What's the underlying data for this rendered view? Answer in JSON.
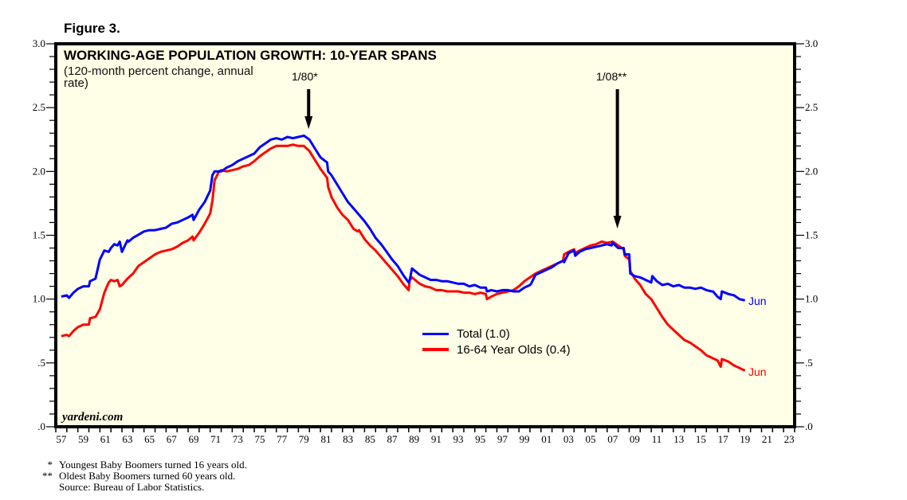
{
  "figure_label": "Figure 3.",
  "watermark": "yardeni.com",
  "colors": {
    "plot_bg": "#fffee6",
    "total": "#0000ff",
    "youth": "#ff0000",
    "axis": "#000000"
  },
  "annotations": [
    {
      "label": "1/80*",
      "x": 1980.0
    },
    {
      "label": "1/08**",
      "x": 2008.0
    }
  ],
  "end_labels": [
    {
      "series": "Total (1.0)",
      "label": "Jun"
    },
    {
      "series": "16-64 Year Olds (0.4)",
      "label": "Jun"
    }
  ],
  "footnotes": [
    {
      "mark": "*",
      "text": "Youngest Baby Boomers turned 16 years old."
    },
    {
      "mark": "**",
      "text": "Oldest Baby Boomers turned 60 years old."
    },
    {
      "mark": "",
      "text": "Source: Bureau of Labor Statistics."
    }
  ],
  "chart_data": {
    "type": "line",
    "title": "WORKING-AGE POPULATION GROWTH: 10-YEAR SPANS",
    "subtitle": "(120-month percent change, annual rate)",
    "xlabel": "",
    "ylabel": "",
    "xlim": [
      1957,
      2024
    ],
    "ylim": [
      0,
      3.0
    ],
    "x_tick_labels": [
      "57",
      "59",
      "61",
      "63",
      "65",
      "67",
      "69",
      "71",
      "73",
      "75",
      "77",
      "79",
      "81",
      "83",
      "85",
      "87",
      "89",
      "91",
      "93",
      "95",
      "97",
      "99",
      "01",
      "03",
      "05",
      "07",
      "09",
      "11",
      "13",
      "15",
      "17",
      "19",
      "21",
      "23"
    ],
    "y_tick_labels_left": [
      "3.0",
      "2.5",
      "2.0",
      "1.5",
      "1.0",
      ".5",
      ".0"
    ],
    "y_tick_labels_right": [
      "3.0",
      "2.5",
      "2.0",
      "1.5",
      "1.0",
      ".5",
      ".0"
    ],
    "y_ticks": [
      3.0,
      2.5,
      2.0,
      1.5,
      1.0,
      0.5,
      0.0
    ],
    "grid": false,
    "legend": "center",
    "series": [
      {
        "name": "Total (1.0)",
        "x": [
          1957.5,
          1958.0,
          1958.2,
          1958.6,
          1959.0,
          1959.5,
          1960.0,
          1960.1,
          1960.6,
          1961.0,
          1961.4,
          1961.8,
          1962.0,
          1962.3,
          1962.6,
          1962.8,
          1963.0,
          1963.5,
          1963.6,
          1964.0,
          1964.6,
          1965.0,
          1965.5,
          1966.0,
          1966.5,
          1967.0,
          1967.5,
          1968.0,
          1968.5,
          1969.0,
          1969.4,
          1969.5,
          1970.0,
          1970.5,
          1971.0,
          1971.2,
          1971.4,
          1971.8,
          1972.0,
          1972.5,
          1973.0,
          1973.5,
          1974.0,
          1974.5,
          1975.0,
          1975.5,
          1976.0,
          1976.5,
          1977.0,
          1977.5,
          1978.0,
          1978.5,
          1979.0,
          1979.5,
          1980.0,
          1980.5,
          1981.0,
          1981.6,
          1981.7,
          1982.0,
          1982.5,
          1983.0,
          1983.5,
          1984.0,
          1984.5,
          1985.0,
          1985.5,
          1986.0,
          1986.5,
          1987.0,
          1987.5,
          1988.0,
          1988.5,
          1989.0,
          1989.1,
          1989.3,
          1990.0,
          1990.5,
          1991.0,
          1991.5,
          1992.0,
          1992.5,
          1993.0,
          1993.5,
          1994.0,
          1994.5,
          1995.0,
          1995.5,
          1996.0,
          1996.1,
          1996.5,
          1997.0,
          1997.5,
          1998.0,
          1998.5,
          1999.0,
          1999.5,
          2000.0,
          2000.1,
          2000.5,
          2001.0,
          2001.5,
          2002.0,
          2002.5,
          2003.0,
          2003.1,
          2003.5,
          2004.0,
          2004.1,
          2004.5,
          2005.0,
          2005.5,
          2006.0,
          2006.5,
          2007.0,
          2007.4,
          2007.5,
          2008.0,
          2008.5,
          2008.6,
          2009.0,
          2009.1,
          2009.5,
          2010.0,
          2010.5,
          2011.0,
          2011.1,
          2011.5,
          2012.0,
          2012.5,
          2013.0,
          2013.5,
          2014.0,
          2014.5,
          2015.0,
          2015.5,
          2016.0,
          2016.5,
          2016.6,
          2017.0,
          2017.3,
          2017.4,
          2018.0,
          2018.5,
          2019.0,
          2019.5
        ],
        "values": [
          1.02,
          1.03,
          1.01,
          1.05,
          1.08,
          1.1,
          1.1,
          1.14,
          1.16,
          1.31,
          1.38,
          1.37,
          1.4,
          1.43,
          1.42,
          1.45,
          1.37,
          1.46,
          1.45,
          1.48,
          1.51,
          1.53,
          1.54,
          1.54,
          1.55,
          1.56,
          1.59,
          1.6,
          1.62,
          1.64,
          1.66,
          1.62,
          1.7,
          1.76,
          1.85,
          1.97,
          2.0,
          2.0,
          2.0,
          2.03,
          2.05,
          2.08,
          2.1,
          2.12,
          2.14,
          2.19,
          2.22,
          2.25,
          2.26,
          2.25,
          2.27,
          2.26,
          2.27,
          2.28,
          2.25,
          2.18,
          2.11,
          2.07,
          2.0,
          1.97,
          1.9,
          1.83,
          1.76,
          1.71,
          1.66,
          1.61,
          1.55,
          1.48,
          1.43,
          1.37,
          1.31,
          1.26,
          1.19,
          1.13,
          1.15,
          1.24,
          1.19,
          1.17,
          1.15,
          1.15,
          1.14,
          1.14,
          1.13,
          1.12,
          1.12,
          1.1,
          1.11,
          1.09,
          1.09,
          1.06,
          1.07,
          1.06,
          1.07,
          1.07,
          1.06,
          1.06,
          1.09,
          1.11,
          1.12,
          1.19,
          1.21,
          1.23,
          1.25,
          1.28,
          1.3,
          1.29,
          1.36,
          1.38,
          1.34,
          1.37,
          1.39,
          1.4,
          1.41,
          1.42,
          1.43,
          1.42,
          1.44,
          1.4,
          1.4,
          1.35,
          1.35,
          1.2,
          1.18,
          1.17,
          1.15,
          1.13,
          1.18,
          1.14,
          1.11,
          1.12,
          1.1,
          1.11,
          1.09,
          1.09,
          1.08,
          1.09,
          1.07,
          1.06,
          1.06,
          1.02,
          1.0,
          1.06,
          1.04,
          1.03,
          1.0,
          0.99
        ]
      },
      {
        "name": "16-64 Year Olds (0.4)",
        "x": [
          1957.5,
          1958.0,
          1958.2,
          1958.6,
          1959.0,
          1959.5,
          1960.0,
          1960.1,
          1960.6,
          1961.0,
          1961.4,
          1961.8,
          1962.0,
          1962.3,
          1962.6,
          1962.8,
          1963.0,
          1963.5,
          1964.0,
          1964.5,
          1965.0,
          1965.5,
          1966.0,
          1966.5,
          1967.0,
          1967.5,
          1968.0,
          1968.5,
          1969.0,
          1969.4,
          1969.5,
          1970.0,
          1970.5,
          1971.0,
          1971.2,
          1971.4,
          1971.8,
          1972.0,
          1972.5,
          1973.0,
          1973.5,
          1974.0,
          1974.5,
          1975.0,
          1975.5,
          1976.0,
          1976.5,
          1977.0,
          1977.5,
          1978.0,
          1978.5,
          1979.0,
          1979.5,
          1980.0,
          1980.5,
          1981.0,
          1981.6,
          1981.7,
          1982.0,
          1982.5,
          1983.0,
          1983.5,
          1984.0,
          1984.4,
          1984.5,
          1985.0,
          1985.5,
          1986.0,
          1986.5,
          1987.0,
          1987.5,
          1988.0,
          1988.5,
          1989.0,
          1989.1,
          1989.3,
          1990.0,
          1990.5,
          1991.0,
          1991.5,
          1992.0,
          1992.5,
          1993.0,
          1993.5,
          1994.0,
          1994.5,
          1995.0,
          1995.5,
          1996.0,
          1996.1,
          1996.5,
          1997.0,
          1997.5,
          1998.0,
          1998.5,
          1999.0,
          1999.5,
          2000.0,
          2000.5,
          2001.0,
          2001.5,
          2002.0,
          2002.5,
          2003.0,
          2003.1,
          2003.5,
          2004.0,
          2004.1,
          2004.5,
          2005.0,
          2005.5,
          2006.0,
          2006.5,
          2007.0,
          2007.5,
          2008.0,
          2008.5,
          2008.6,
          2009.0,
          2009.1,
          2009.5,
          2010.0,
          2010.5,
          2011.0,
          2011.5,
          2012.0,
          2012.5,
          2013.0,
          2013.5,
          2014.0,
          2014.5,
          2015.0,
          2015.5,
          2016.0,
          2016.5,
          2017.0,
          2017.3,
          2017.4,
          2018.0,
          2018.5,
          2019.0,
          2019.5
        ],
        "values": [
          0.71,
          0.72,
          0.71,
          0.75,
          0.78,
          0.8,
          0.8,
          0.85,
          0.86,
          0.92,
          1.05,
          1.13,
          1.15,
          1.14,
          1.15,
          1.1,
          1.11,
          1.16,
          1.2,
          1.26,
          1.29,
          1.32,
          1.35,
          1.37,
          1.38,
          1.39,
          1.41,
          1.44,
          1.46,
          1.49,
          1.46,
          1.52,
          1.59,
          1.67,
          1.77,
          1.93,
          2.0,
          2.01,
          2.0,
          2.01,
          2.02,
          2.04,
          2.05,
          2.08,
          2.12,
          2.15,
          2.18,
          2.2,
          2.2,
          2.2,
          2.21,
          2.2,
          2.2,
          2.16,
          2.09,
          2.02,
          1.95,
          1.88,
          1.8,
          1.72,
          1.66,
          1.62,
          1.55,
          1.53,
          1.54,
          1.47,
          1.42,
          1.38,
          1.33,
          1.28,
          1.23,
          1.18,
          1.12,
          1.07,
          1.15,
          1.17,
          1.12,
          1.1,
          1.09,
          1.07,
          1.07,
          1.06,
          1.06,
          1.06,
          1.05,
          1.05,
          1.04,
          1.05,
          1.04,
          1.0,
          1.02,
          1.04,
          1.05,
          1.06,
          1.07,
          1.1,
          1.14,
          1.17,
          1.2,
          1.22,
          1.24,
          1.26,
          1.28,
          1.3,
          1.35,
          1.37,
          1.39,
          1.36,
          1.38,
          1.4,
          1.42,
          1.43,
          1.45,
          1.44,
          1.45,
          1.42,
          1.39,
          1.34,
          1.31,
          1.22,
          1.16,
          1.11,
          1.04,
          1.0,
          0.93,
          0.86,
          0.8,
          0.76,
          0.72,
          0.68,
          0.66,
          0.63,
          0.6,
          0.56,
          0.54,
          0.52,
          0.47,
          0.53,
          0.51,
          0.48,
          0.46,
          0.44
        ]
      }
    ]
  }
}
